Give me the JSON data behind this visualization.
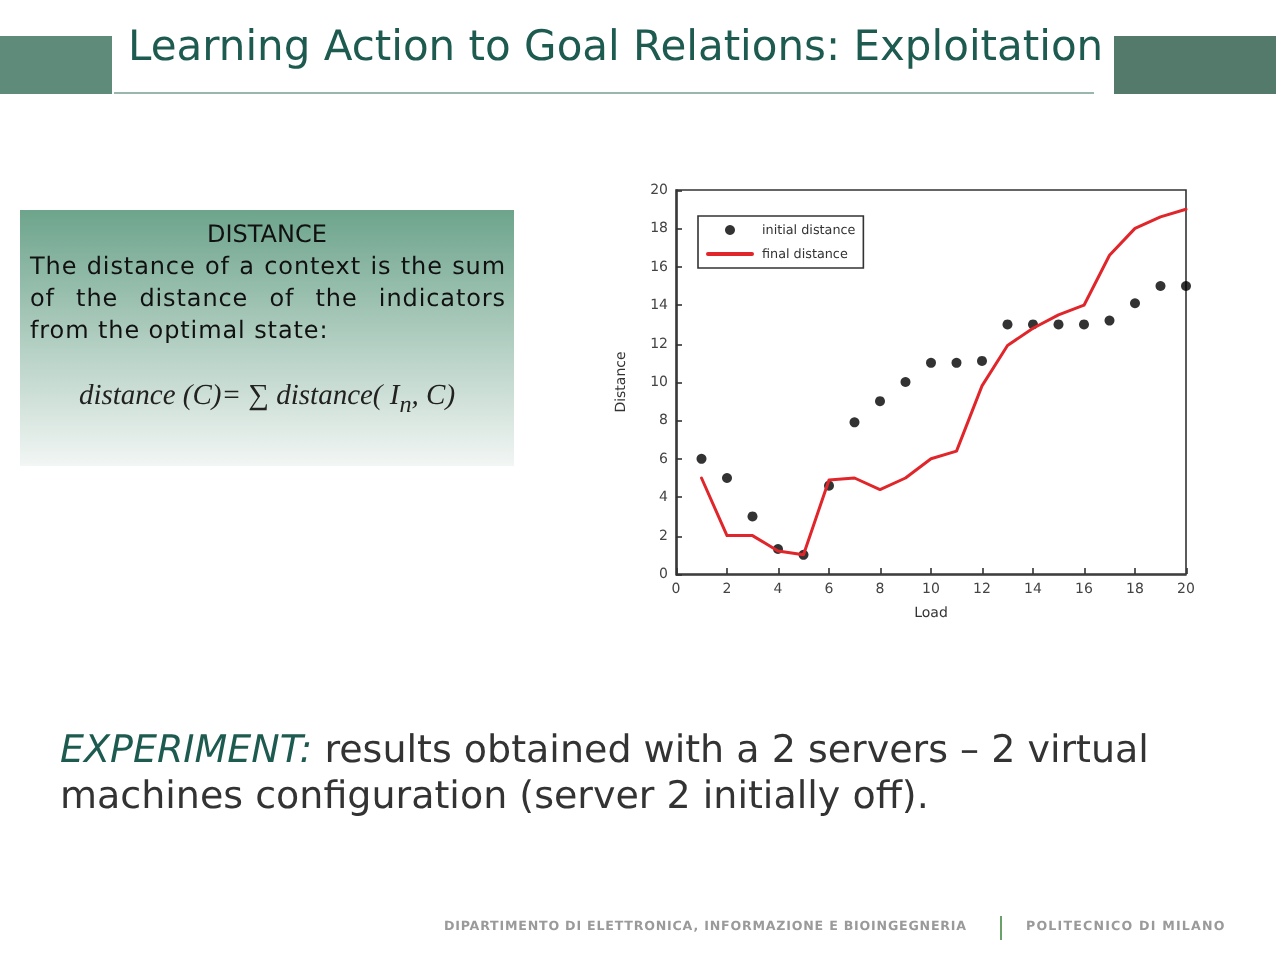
{
  "chart_data": {
    "type": "scatter",
    "title": "Learning Action to Goal Relations: Exploitation",
    "xlabel": "Load",
    "ylabel": "Distance",
    "annotations": [
      "DISTANCE",
      "The distance of a context is the sum of the distance of the indicators from the optimal state:",
      "distance (C)= ∑ distance( I$_{n}$, C)",
      "EXPERIMENT: results obtained with a 2 servers – 2 virtual machines configuration (server 2 initially off).",
      "DIPARTIMENTO DI ELETTRONICA, INFORMAZIONE E BIOINGEGNERIA",
      "POLITECNICO DI MILANO"
    ],
    "x": [
      1,
      2,
      3,
      4,
      5,
      6,
      7,
      8,
      9,
      10,
      11,
      12,
      13,
      14,
      15,
      16,
      17,
      18,
      19,
      20
    ],
    "series": [
      {
        "name": "initial distance",
        "marker": "circle",
        "color": "#000000",
        "values": [
          6,
          5,
          3,
          1.3,
          1,
          4.6,
          7.9,
          9,
          10,
          11,
          11,
          11.1,
          13,
          13,
          13,
          13,
          13.2,
          14.1,
          15,
          15
        ]
      },
      {
        "name": "final distance",
        "type": "line",
        "marker": "none",
        "color": "#e0262a",
        "values": [
          5,
          2,
          2,
          1.2,
          1,
          4.9,
          5,
          4.4,
          5,
          6,
          6.4,
          9.8,
          11.9,
          12.8,
          13.5,
          14,
          16.6,
          18,
          18.6,
          19
        ]
      }
    ],
    "xlim": [
      0,
      20
    ],
    "xticks": [
      0,
      2,
      4,
      6,
      8,
      10,
      12,
      14,
      16,
      18,
      20
    ],
    "ylim": [
      0,
      20
    ],
    "yticks": [
      0,
      2,
      4,
      6,
      8,
      10,
      12,
      14,
      16,
      18,
      20
    ],
    "grid": false,
    "legend": "top left"
  }
}
